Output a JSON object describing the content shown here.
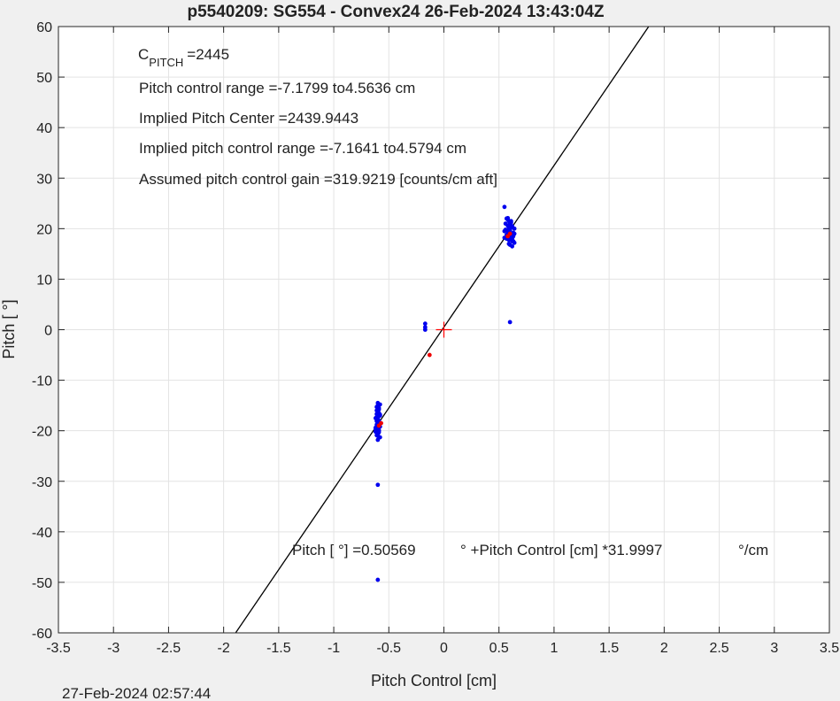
{
  "chart_data": {
    "type": "scatter",
    "title": "p5540209: SG554 - Convex24 26-Feb-2024 13:43:04Z",
    "xlabel": "Pitch Control [cm]",
    "ylabel": "Pitch [  °]",
    "xlim": [
      -3.5,
      3.5
    ],
    "ylim": [
      -60,
      60
    ],
    "xticks": [
      -3.5,
      -3,
      -2.5,
      -2,
      -1.5,
      -1,
      -0.5,
      0,
      0.5,
      1,
      1.5,
      2,
      2.5,
      3,
      3.5
    ],
    "yticks": [
      -60,
      -50,
      -40,
      -30,
      -20,
      -10,
      0,
      10,
      20,
      30,
      40,
      50,
      60
    ],
    "grid": true,
    "fit_line": {
      "slope": 31.9997,
      "intercept": 0.50569
    },
    "center_marker": {
      "x": 0,
      "y": 0,
      "color": "#ff0000"
    },
    "series": [
      {
        "color": "#0000ee",
        "x": [
          -0.6,
          -0.59,
          -0.61,
          -0.58,
          -0.6,
          -0.62,
          -0.59,
          -0.6,
          -0.61,
          -0.58,
          -0.6,
          -0.59,
          -0.62,
          -0.6,
          -0.61,
          -0.58,
          -0.6,
          -0.59,
          -0.61,
          -0.6,
          -0.62,
          -0.59,
          -0.6,
          -0.58,
          -0.61,
          -0.6,
          -0.59,
          -0.6,
          -0.61,
          -0.6,
          -0.58,
          -0.59,
          -0.62,
          -0.6,
          -0.61,
          -0.6,
          -0.59,
          -0.6,
          -0.61,
          -0.6,
          0.55,
          0.57,
          0.59,
          0.6,
          0.62,
          0.64,
          0.56,
          0.58,
          0.6,
          0.61,
          0.63,
          0.55,
          0.57,
          0.59,
          0.62,
          0.64,
          0.58,
          0.6,
          0.56,
          0.61,
          0.63,
          0.59,
          0.57,
          0.62,
          0.6,
          0.58,
          0.64,
          0.55,
          0.61,
          0.6,
          0.59,
          0.63,
          0.57,
          0.62,
          0.6,
          0.61,
          0.58,
          -0.17,
          -0.17,
          -0.17,
          -0.6,
          -0.6,
          0.6
        ],
        "y": [
          -14.5,
          -15.5,
          -16.0,
          -16.8,
          -17.2,
          -17.5,
          -18.0,
          -18.3,
          -18.8,
          -19.2,
          -19.5,
          -19.9,
          -20.2,
          -20.5,
          -20.9,
          -21.3,
          -15.0,
          -16.5,
          -17.8,
          -18.6,
          -19.4,
          -20.0,
          -21.8,
          -17.0,
          -18.1,
          -19.0,
          -15.8,
          -16.3,
          -17.3,
          -20.7,
          -14.8,
          -18.4,
          -19.7,
          -21.0,
          -16.7,
          -17.6,
          -20.3,
          -18.9,
          -15.3,
          -19.6,
          24.3,
          22.0,
          21.5,
          21.0,
          20.5,
          20.0,
          19.8,
          19.5,
          19.0,
          18.8,
          18.5,
          18.2,
          18.0,
          17.8,
          17.5,
          17.2,
          21.8,
          20.8,
          21.0,
          20.2,
          19.2,
          17.0,
          22.0,
          18.0,
          16.8,
          20.6,
          19.0,
          19.5,
          21.5,
          18.3,
          20.0,
          17.5,
          18.8,
          16.5,
          19.7,
          21.2,
          22.1,
          1.2,
          0.5,
          0.0,
          -30.7,
          -49.5,
          1.5
        ]
      },
      {
        "color": "#ee0000",
        "x": [
          -0.13,
          -0.57,
          -0.59,
          0.58,
          0.6
        ],
        "y": [
          -5.0,
          -18.5,
          -19.0,
          18.5,
          19.0
        ]
      }
    ],
    "annotations": [
      {
        "text": "=2445",
        "symbol": "C",
        "subscript": "PITCH"
      },
      {
        "text": "Pitch control range =-7.1799 to4.5636 cm"
      },
      {
        "text": "Implied Pitch Center =2439.9443"
      },
      {
        "text": "Implied pitch control range =-7.1641 to4.5794 cm"
      },
      {
        "text": "Assumed pitch control gain =319.9219 [counts/cm aft]"
      }
    ],
    "fit_equation": {
      "part1": "Pitch [  °] =0.50569",
      "part2": "° +Pitch Control [cm] *31.9997",
      "part3": "°/cm"
    },
    "footer_timestamp": "27-Feb-2024 02:57:44"
  }
}
